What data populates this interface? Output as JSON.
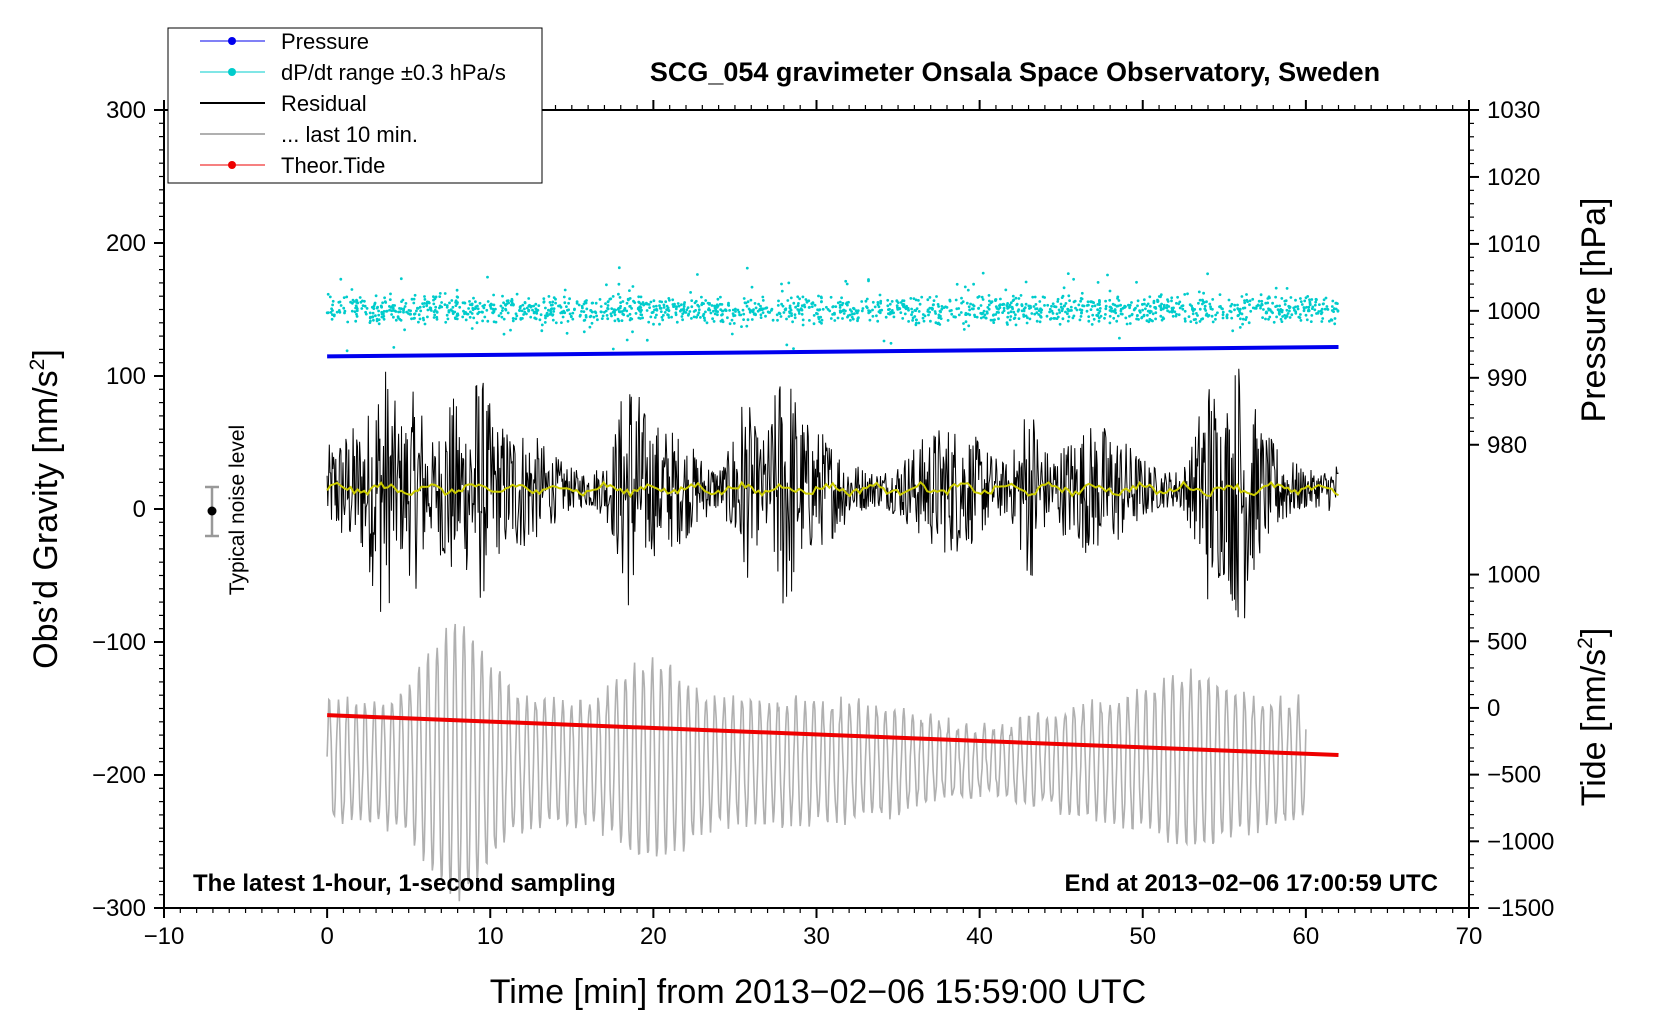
{
  "chart_data": {
    "type": "line",
    "title": "SCG_054 gravimeter Onsala Space Observatory, Sweden",
    "xlabel": "Time [min] from 2013−02−06 15:59:00 UTC",
    "ylabel_left_text": "Obs’d Gravity [nm/s",
    "ylabel_left_sup": "2",
    "ylabel_left_close": "]",
    "ylabel_right_top": "Pressure [hPa]",
    "ylabel_right_bottom_text": "Tide [nm/s",
    "ylabel_right_bottom_sup": "2",
    "ylabel_right_bottom_close": "]",
    "xlim": [
      -10,
      70
    ],
    "ylim": [
      -300,
      300
    ],
    "pressure_axis_range": [
      980,
      1030
    ],
    "tide_axis_range": [
      -1500,
      1000
    ],
    "x_ticks": [
      "−10",
      "0",
      "10",
      "20",
      "30",
      "40",
      "50",
      "60",
      "70"
    ],
    "x_tick_values": [
      -10,
      0,
      10,
      20,
      30,
      40,
      50,
      60,
      70
    ],
    "y_ticks": [
      "−300",
      "−200",
      "−100",
      "0",
      "100",
      "200",
      "300"
    ],
    "y_tick_values": [
      -300,
      -200,
      -100,
      0,
      100,
      200,
      300
    ],
    "pressure_ticks": [
      "980",
      "990",
      "1000",
      "1010",
      "1020",
      "1030"
    ],
    "pressure_tick_values": [
      980,
      990,
      1000,
      1010,
      1020,
      1030
    ],
    "tide_ticks": [
      "−1500",
      "−1000",
      "−500",
      "0",
      "500",
      "1000"
    ],
    "tide_tick_values": [
      -1500,
      -1000,
      -500,
      0,
      500,
      1000
    ],
    "legend": [
      {
        "label": "Pressure",
        "color": "#0000ee",
        "style": "line-dot"
      },
      {
        "label": "dP/dt range ±0.3 hPa/s",
        "color": "#00cccc",
        "style": "line-dot"
      },
      {
        "label": "Residual",
        "color": "#000000",
        "style": "line"
      },
      {
        "label": "... last 10 min.",
        "color": "#b0b0b0",
        "style": "line"
      },
      {
        "label": "Theor.Tide",
        "color": "#ee0000",
        "style": "line-dot"
      }
    ],
    "legend_placement": "top-left",
    "noise_label": "Typical noise level",
    "noise_bar": {
      "x": -7,
      "center": 0,
      "half_range": 20
    },
    "annotation_left": "The latest 1-hour, 1-second sampling",
    "annotation_right": "End at 2013−02−06 17:00:59 UTC",
    "series": [
      {
        "name": "Pressure",
        "axis": "pressure",
        "x_range": [
          0,
          62
        ],
        "start": 993.2,
        "end": 994.6,
        "color": "#0000ee"
      },
      {
        "name": "dP/dt range",
        "axis": "gravity",
        "x_range": [
          0,
          62
        ],
        "center": 150,
        "spread": 40,
        "color": "#00cccc"
      },
      {
        "name": "Residual",
        "axis": "gravity",
        "x_range": [
          0,
          62
        ],
        "center": 15,
        "min": -110,
        "max": 135,
        "color": "#000000"
      },
      {
        "name": "Residual smoothed",
        "axis": "gravity",
        "x_range": [
          0,
          62
        ],
        "center": 15,
        "color": "#cccc00"
      },
      {
        "name": "... last 10 min.",
        "axis": "gravity",
        "x_range": [
          0,
          60
        ],
        "center": -190,
        "min": -300,
        "max": -65,
        "color": "#b0b0b0"
      },
      {
        "name": "Theor.Tide",
        "axis": "gravity",
        "x_range": [
          0,
          62
        ],
        "start": -155,
        "end": -185,
        "color": "#ee0000"
      }
    ]
  }
}
